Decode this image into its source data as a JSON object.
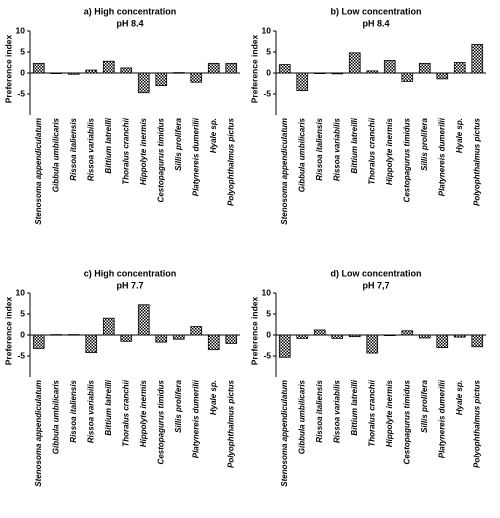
{
  "chart_data": [
    {
      "type": "bar",
      "title": "a) High concentration",
      "subtitle": "pH 8.4",
      "y_label": "Preference index",
      "categories": [
        "Stenosoma appendiculatum",
        "Gibbula umbilicaris",
        "Rissoa italiensis",
        "Rissoa variabilis",
        "Bittium latreilli",
        "Thoralus cranchii",
        "Hippolyte inermis",
        "Cestopagurus timidus",
        "Sillis prolifera",
        "Platynereis dumerilii",
        "Hyale sp.",
        "Polyophthalmus pictus"
      ],
      "values": [
        2.3,
        -0.1,
        -0.3,
        0.7,
        2.8,
        1.2,
        -4.7,
        -3.0,
        0.1,
        -2.2,
        2.3,
        2.3
      ],
      "ylim": [
        -10,
        10
      ],
      "yticks": [
        -5,
        0,
        5,
        10
      ],
      "color": "#555555"
    },
    {
      "type": "bar",
      "title": "b) Low concentration",
      "subtitle": "pH 8.4",
      "y_label": "Preference index",
      "categories": [
        "Stenosoma appendiculatum",
        "Gibbula umbilicaris",
        "Rissoa italiensis",
        "Rissoa variabilis",
        "Bittium latreilli",
        "Thoralus cranchii",
        "Hippolyte inermis",
        "Cestopagurus timidus",
        "Sillis prolifera",
        "Platynereis dumerilii",
        "Hyale sp.",
        "Polyophthalmus pictus"
      ],
      "values": [
        2.0,
        -4.2,
        -0.1,
        -0.2,
        4.8,
        0.5,
        3.0,
        -2.0,
        2.3,
        -1.4,
        2.5,
        6.8
      ],
      "ylim": [
        -10,
        10
      ],
      "yticks": [
        -5,
        0,
        5,
        10
      ],
      "color": "#555555"
    },
    {
      "type": "bar",
      "title": "c) High concentration",
      "subtitle": "pH 7.7",
      "y_label": "Preference index",
      "categories": [
        "Stenosoma appendiculatum",
        "Gibbula umbilicaris",
        "Rissoa italiensis",
        "Rissoa variabilis",
        "Bittium latreilli",
        "Thoralus cranchii",
        "Hippolyte inermis",
        "Cestopagurus timidus",
        "Sillis prolifera",
        "Platynereis dumerilii",
        "Hyale sp.",
        "Polyophthalmus pictus"
      ],
      "values": [
        -3.2,
        0.1,
        0.1,
        -4.2,
        4.0,
        -1.5,
        7.2,
        -1.7,
        -1.0,
        2.0,
        -3.5,
        -2.0
      ],
      "ylim": [
        -10,
        10
      ],
      "yticks": [
        -5,
        0,
        5,
        10
      ],
      "color": "#555555"
    },
    {
      "type": "bar",
      "title": "d) Low concentration",
      "subtitle": "pH 7,7",
      "y_label": "Preference index",
      "categories": [
        "Stenosoma appendiculatum",
        "Gibbula umbilicaris",
        "Rissoa italiensis",
        "Rissoa variabilis",
        "Bittium latreilli",
        "Thoralus cranchii",
        "Hippolyte inermis",
        "Cestopagurus timidus",
        "Sillis prolifera",
        "Platynereis dumerilii",
        "Hyale sp.",
        "Polyophthalmus pictus"
      ],
      "values": [
        -5.3,
        -0.8,
        1.2,
        -0.8,
        -0.4,
        -4.3,
        -0.1,
        1.0,
        -0.7,
        -3.0,
        -0.5,
        -2.8
      ],
      "ylim": [
        -10,
        10
      ],
      "yticks": [
        -5,
        0,
        5,
        10
      ],
      "color": "#555555"
    }
  ]
}
